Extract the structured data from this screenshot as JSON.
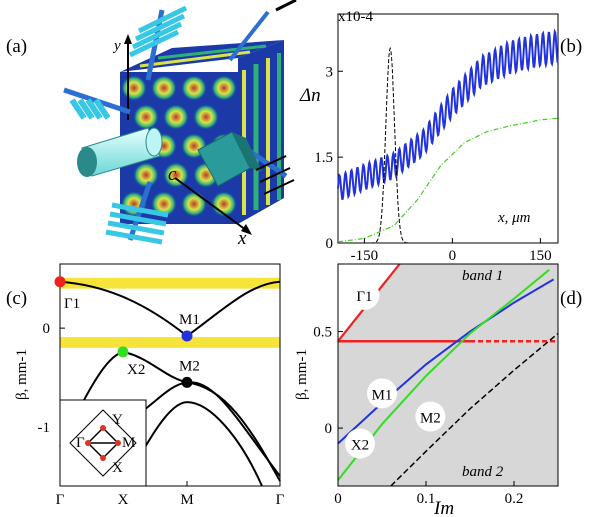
{
  "figure": {
    "panel_labels": [
      "(a)",
      "(b)",
      "(c)",
      "(d)"
    ]
  },
  "panel_a": {
    "axis_labels": {
      "y": "y",
      "x": "x",
      "c": "c"
    },
    "colors": {
      "lattice_bg": "#1b3aa8",
      "spot": "#d9e24a",
      "cylinder": "#a8f0f0",
      "beam": "#39c7e6"
    }
  },
  "chart_data": [
    {
      "panel": "b",
      "type": "line",
      "ylabel": "Δn",
      "xlabel": "x, μm",
      "y_exponent": "x10-4",
      "xlim": [
        -195,
        180
      ],
      "ylim": [
        0,
        4.0
      ],
      "xticks": [
        -150,
        0,
        150
      ],
      "xtick_labels": [
        "-150",
        "0",
        "150"
      ],
      "yticks": [
        0,
        1.5,
        3
      ],
      "ytick_labels": [
        "0",
        "1.5",
        "3"
      ],
      "series": [
        {
          "style": "blue oscillating",
          "color": "#2233dd",
          "x": [
            -195,
            -150,
            -100,
            -50,
            0,
            50,
            100,
            150,
            180
          ],
          "y": [
            0.95,
            1.15,
            1.35,
            1.75,
            2.45,
            3.0,
            3.25,
            3.38,
            3.42
          ]
        },
        {
          "style": "green dash-dot",
          "color": "#44cc22",
          "x": [
            -195,
            -150,
            -100,
            -60,
            -20,
            20,
            60,
            100,
            150,
            180
          ],
          "y": [
            0.02,
            0.08,
            0.3,
            0.75,
            1.35,
            1.75,
            1.95,
            2.05,
            2.15,
            2.18
          ]
        },
        {
          "style": "black dashed gaussian",
          "color": "#000000",
          "x": [
            -140,
            -125,
            -115,
            -110,
            -105,
            -100,
            -95,
            -85,
            -70
          ],
          "y": [
            0.0,
            0.4,
            2.0,
            3.2,
            3.4,
            3.1,
            2.0,
            0.3,
            0.0
          ]
        }
      ]
    },
    {
      "panel": "c",
      "type": "line",
      "ylabel": "β, mm-1",
      "xtick_labels": [
        "Γ",
        "X",
        "M",
        "Γ"
      ],
      "ylim": [
        -1.6,
        0.65
      ],
      "yticks": [
        0,
        -1
      ],
      "ytick_labels": [
        "0",
        "-1"
      ],
      "bands_shaded": [
        [
          0.4,
          0.51
        ],
        [
          -0.2,
          -0.09
        ]
      ],
      "points": [
        {
          "label": "Γ1",
          "color": "#ee2222",
          "at": "Γ",
          "beta": 0.47
        },
        {
          "label": "M1",
          "color": "#2233dd",
          "at": "M",
          "beta": -0.08
        },
        {
          "label": "X2",
          "color": "#33dd22",
          "at": "X",
          "beta": -0.24
        },
        {
          "label": "M2",
          "color": "#000000",
          "at": "M",
          "beta": -0.55
        }
      ],
      "inset_labels": [
        "Y",
        "Γ",
        "M",
        "X"
      ]
    },
    {
      "panel": "d",
      "type": "line",
      "ylabel": "β, mm-1",
      "xlabel": "Im",
      "xlim": [
        0,
        0.25
      ],
      "ylim": [
        -0.3,
        0.85
      ],
      "xticks": [
        0,
        0.1,
        0.2
      ],
      "xtick_labels": [
        "0",
        "0.1",
        "0.2"
      ],
      "yticks": [
        0,
        0.5
      ],
      "ytick_labels": [
        "0",
        "0.5"
      ],
      "region_labels": [
        "band 1",
        "band 2"
      ],
      "series": [
        {
          "name": "Γ1",
          "color": "#ee2222",
          "x": [
            0,
            0.07
          ],
          "y": [
            0.45,
            0.85
          ]
        },
        {
          "name": "Γ1-flat",
          "color": "#ee2222",
          "x": [
            0,
            0.15
          ],
          "y": [
            0.45,
            0.45
          ]
        },
        {
          "name": "Γ1-flat-dashed",
          "color": "#ee2222",
          "x": [
            0.15,
            0.25
          ],
          "y": [
            0.45,
            0.45
          ]
        },
        {
          "name": "M1",
          "color": "#2233dd",
          "x": [
            0,
            0.05,
            0.1,
            0.15,
            0.2,
            0.245
          ],
          "y": [
            -0.08,
            0.13,
            0.33,
            0.5,
            0.65,
            0.77
          ]
        },
        {
          "name": "X2",
          "color": "#33dd22",
          "x": [
            0,
            0.05,
            0.1,
            0.15,
            0.2,
            0.24
          ],
          "y": [
            -0.27,
            0.02,
            0.27,
            0.49,
            0.67,
            0.82
          ]
        },
        {
          "name": "M2",
          "color": "#000000",
          "x": [
            0.06,
            0.1,
            0.15,
            0.2,
            0.25
          ],
          "y": [
            -0.3,
            -0.12,
            0.1,
            0.3,
            0.49
          ]
        }
      ],
      "point_labels": [
        "Γ1",
        "M1",
        "X2",
        "M2"
      ]
    }
  ]
}
